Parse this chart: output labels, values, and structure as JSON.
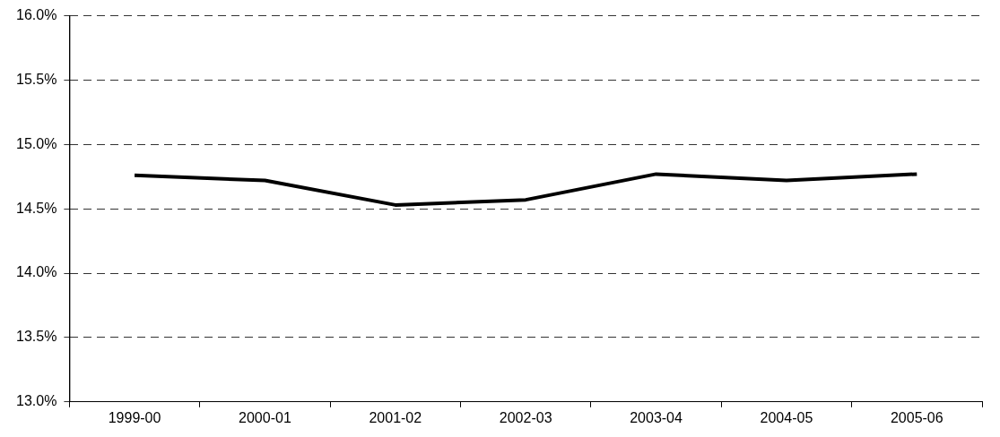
{
  "chart_data": {
    "type": "line",
    "categories": [
      "1999-00",
      "2000-01",
      "2001-02",
      "2002-03",
      "2003-04",
      "2004-05",
      "2005-06"
    ],
    "series": [
      {
        "color": "#000000",
        "values": [
          14.76,
          14.72,
          14.53,
          14.57,
          14.77,
          14.72,
          14.77
        ]
      }
    ],
    "ylim": [
      13.0,
      16.0
    ],
    "yticks": [
      {
        "value": 13.0,
        "label": "13.0%"
      },
      {
        "value": 13.5,
        "label": "13.5%"
      },
      {
        "value": 14.0,
        "label": "14.0%"
      },
      {
        "value": 14.5,
        "label": "14.5%"
      },
      {
        "value": 15.0,
        "label": "15.0%"
      },
      {
        "value": 15.5,
        "label": "15.5%"
      },
      {
        "value": 16.0,
        "label": "16.0%"
      }
    ],
    "grid": "y",
    "legend": false,
    "marker": "none",
    "line_style": "solid"
  }
}
